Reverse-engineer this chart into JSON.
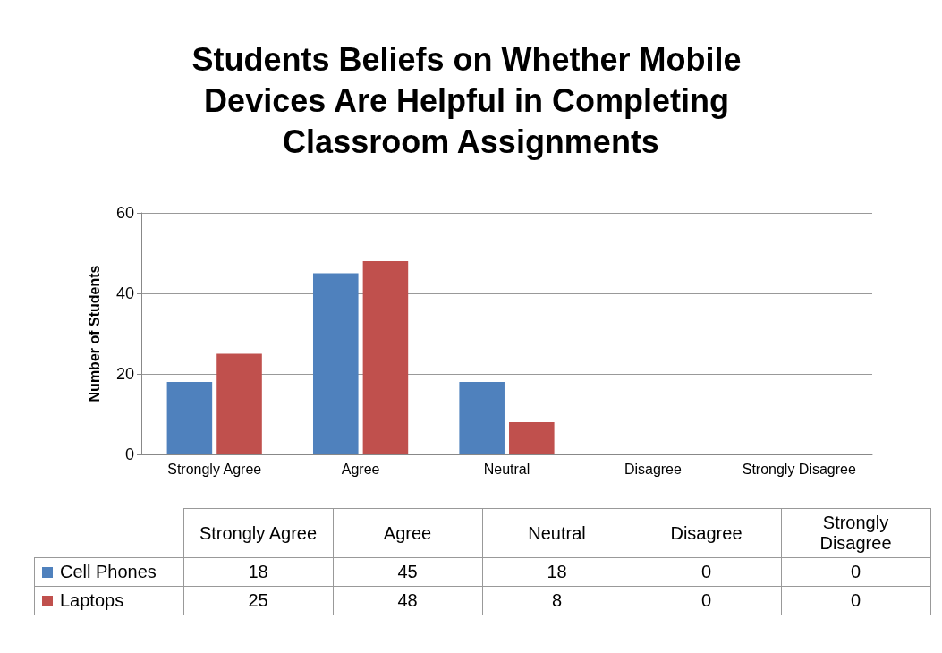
{
  "chart_data": {
    "type": "bar",
    "title": "Students Beliefs on Whether Mobile Devices Are Helpful in Completing Classroom Assignments",
    "ylabel": "Number of Students",
    "categories": [
      "Strongly Agree",
      "Agree",
      "Neutral",
      "Disagree",
      "Strongly Disagree"
    ],
    "series": [
      {
        "name": "Cell Phones",
        "color": "#4f81bd",
        "values": [
          18,
          45,
          18,
          0,
          0
        ]
      },
      {
        "name": "Laptops",
        "color": "#c0504d",
        "values": [
          25,
          48,
          8,
          0,
          0
        ]
      }
    ],
    "ylim": [
      0,
      60
    ],
    "yticks": [
      0,
      20,
      40,
      60
    ],
    "grid": "y",
    "legend": "bottom",
    "data_labels": true
  }
}
